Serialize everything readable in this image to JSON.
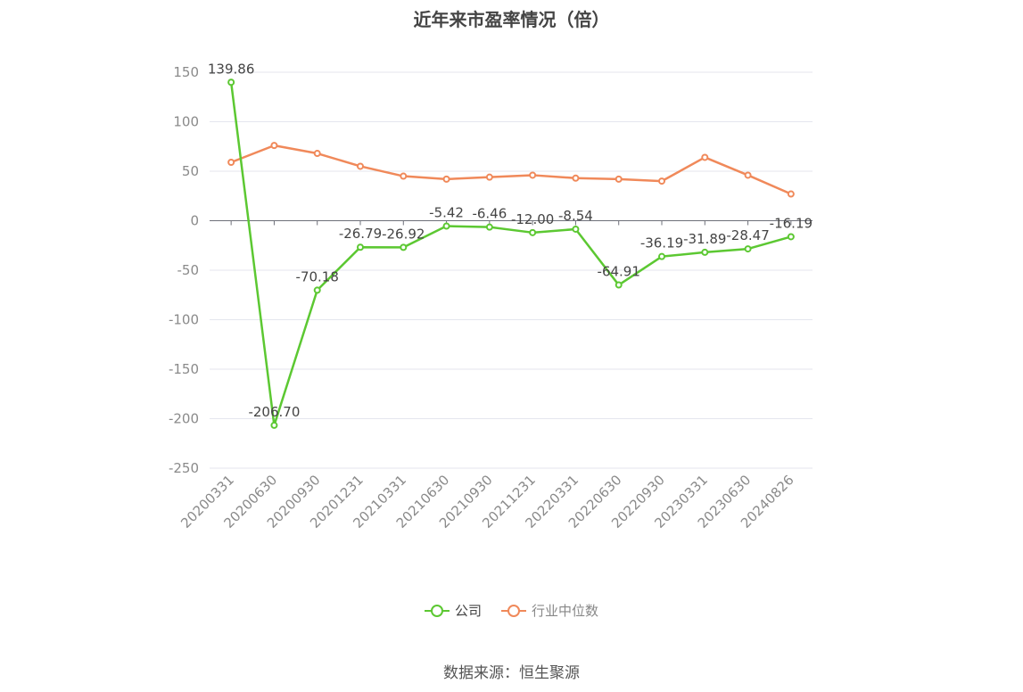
{
  "title": "近年来市盈率情况（倍）",
  "source": "数据来源：恒生聚源",
  "chart_data": {
    "type": "line",
    "categories": [
      "20200331",
      "20200630",
      "20200930",
      "20201231",
      "20210331",
      "20210630",
      "20210930",
      "20211231",
      "20220331",
      "20220630",
      "20220930",
      "20230331",
      "20230630",
      "20240826"
    ],
    "ylim": [
      -250,
      150
    ],
    "yticks": [
      150,
      100,
      50,
      0,
      -50,
      -100,
      -150,
      -200,
      -250
    ],
    "grid": true,
    "legend_position": "bottom",
    "series": [
      {
        "name": "公司",
        "color": "#5cc832",
        "show_labels": true,
        "values": [
          139.86,
          -206.7,
          -70.18,
          -26.79,
          -26.92,
          -5.42,
          -6.46,
          -12.0,
          -8.54,
          -64.91,
          -36.19,
          -31.89,
          -28.47,
          -16.19
        ],
        "labels": [
          "139.86",
          "-206.70",
          "-70.18",
          "-26.79",
          "-26.92",
          "-5.42",
          "-6.46",
          "-12.00",
          "-8.54",
          "-64.91",
          "-36.19",
          "-31.89",
          "-28.47",
          "-16.19"
        ]
      },
      {
        "name": "行业中位数",
        "color": "#f0895a",
        "show_labels": false,
        "values": [
          59,
          76,
          68,
          55,
          45,
          42,
          44,
          46,
          43,
          42,
          40,
          64,
          46,
          27
        ]
      }
    ]
  }
}
